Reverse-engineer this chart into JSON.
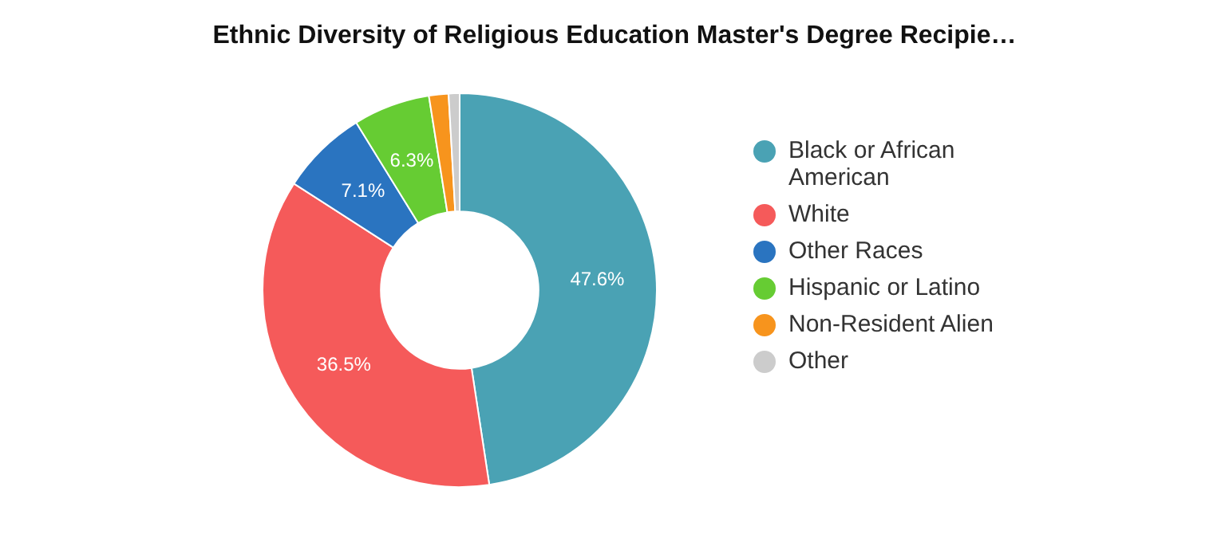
{
  "chart_data": {
    "type": "donut",
    "title": "Ethnic Diversity of Religious Education Master's Degree Recipie…",
    "categories": [
      "Black or African American",
      "White",
      "Other Races",
      "Hispanic or Latino",
      "Non-Resident Alien",
      "Other"
    ],
    "values": [
      47.6,
      36.5,
      7.1,
      6.3,
      1.6,
      0.9
    ],
    "colors": [
      "#4aa2b4",
      "#f55a5a",
      "#2a74c0",
      "#66cc33",
      "#f7941d",
      "#cccccc"
    ],
    "value_labels": [
      "47.6%",
      "36.5%",
      "7.1%",
      "6.3%",
      null,
      null
    ],
    "legend": "right"
  }
}
